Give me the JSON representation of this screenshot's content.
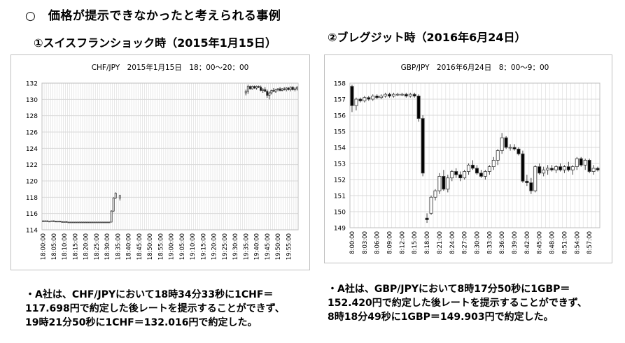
{
  "page": {
    "main_title": "○　価格が提示できなかったと考えられる事例",
    "sub_title_1": "①スイスフランショック時（2015年1月15日）",
    "sub_title_2": "②ブレグジット時（2016年6月24日）",
    "note_1": [
      "・A社は、CHF/JPYにおいて18時34分33秒に1CHF＝",
      "117.698円で約定した後レートを提示することができず、",
      "19時21分50秒に1CHF＝132.016円で約定した。"
    ],
    "note_2": [
      "・A社は、GBP/JPYにおいて8時17分50秒に1GBP＝",
      "152.420円で約定した後レートを提示することができず、",
      "8時18分49秒に1GBP＝149.903円で約定した。"
    ]
  },
  "colors": {
    "up_fill": "#ffffff",
    "down_fill": "#000000",
    "outline": "#404040",
    "grid": "#d9d9d9",
    "frame": "#bfbfbf"
  },
  "chart_data": [
    {
      "type": "candlestick",
      "title": "CHF/JPY　2015年1月15日　18：00～20：00",
      "ylim": [
        114,
        132
      ],
      "y_ticks": [
        114,
        116,
        118,
        120,
        122,
        124,
        126,
        128,
        130,
        132
      ],
      "x_tick_labels": [
        "18:00:00",
        "18:05:00",
        "18:10:00",
        "18:15:00",
        "18:20:00",
        "18:25:00",
        "18:30:00",
        "18:35:00",
        "18:40:00",
        "18:45:00",
        "18:50:00",
        "18:55:00",
        "19:00:00",
        "19:05:00",
        "19:10:00",
        "19:15:00",
        "19:20:00",
        "19:25:00",
        "19:30:00",
        "19:35:00",
        "19:40:00",
        "19:45:00",
        "19:50:00",
        "19:55:00"
      ],
      "start_minute": 0,
      "interval_minutes": 1,
      "n_slots": 120,
      "candles": [
        [
          0,
          115.1,
          115.15,
          115.0,
          115.05
        ],
        [
          1,
          115.05,
          115.15,
          115.0,
          115.1
        ],
        [
          2,
          115.1,
          115.15,
          115.0,
          115.05
        ],
        [
          3,
          115.05,
          115.1,
          115.0,
          115.05
        ],
        [
          4,
          115.05,
          115.1,
          115.0,
          115.1
        ],
        [
          5,
          115.1,
          115.15,
          115.0,
          115.05
        ],
        [
          6,
          115.05,
          115.1,
          114.95,
          115.0
        ],
        [
          7,
          115.0,
          115.1,
          114.95,
          115.05
        ],
        [
          8,
          115.05,
          115.1,
          114.95,
          115.0
        ],
        [
          9,
          115.0,
          115.05,
          114.9,
          114.95
        ],
        [
          10,
          114.95,
          115.05,
          114.9,
          115.0
        ],
        [
          11,
          115.0,
          115.05,
          114.9,
          114.95
        ],
        [
          12,
          114.95,
          115.0,
          114.9,
          114.95
        ],
        [
          13,
          114.95,
          115.0,
          114.9,
          114.95
        ],
        [
          14,
          114.95,
          115.0,
          114.9,
          114.95
        ],
        [
          15,
          114.95,
          115.0,
          114.9,
          114.95
        ],
        [
          16,
          114.95,
          115.0,
          114.9,
          114.95
        ],
        [
          17,
          114.95,
          115.0,
          114.9,
          114.95
        ],
        [
          18,
          114.95,
          115.0,
          114.9,
          114.95
        ],
        [
          19,
          114.95,
          115.0,
          114.9,
          114.95
        ],
        [
          20,
          114.95,
          115.0,
          114.9,
          114.95
        ],
        [
          21,
          114.95,
          115.0,
          114.9,
          114.95
        ],
        [
          22,
          114.95,
          115.0,
          114.9,
          114.95
        ],
        [
          23,
          114.95,
          115.0,
          114.9,
          114.95
        ],
        [
          24,
          114.95,
          115.0,
          114.9,
          114.95
        ],
        [
          25,
          114.95,
          115.0,
          114.9,
          114.95
        ],
        [
          26,
          114.95,
          115.0,
          114.9,
          114.95
        ],
        [
          27,
          114.95,
          115.0,
          114.9,
          114.95
        ],
        [
          28,
          114.95,
          115.0,
          114.9,
          114.95
        ],
        [
          29,
          114.95,
          115.0,
          114.9,
          114.95
        ],
        [
          30,
          114.95,
          115.0,
          114.9,
          114.95
        ],
        [
          31,
          114.95,
          115.0,
          114.9,
          114.95
        ],
        [
          32,
          114.95,
          116.4,
          114.9,
          116.3
        ],
        [
          33,
          116.3,
          118.0,
          116.2,
          117.9
        ],
        [
          34,
          117.9,
          118.6,
          117.8,
          118.5
        ],
        [
          36,
          117.9,
          118.3,
          117.6,
          118.2
        ],
        [
          95,
          130.8,
          131.2,
          130.5,
          131.0
        ],
        [
          96,
          131.0,
          131.8,
          130.7,
          131.6
        ],
        [
          97,
          131.6,
          131.7,
          131.2,
          131.3
        ],
        [
          98,
          131.3,
          131.7,
          131.2,
          131.6
        ],
        [
          99,
          131.6,
          131.7,
          131.3,
          131.4
        ],
        [
          100,
          131.4,
          131.7,
          131.2,
          131.6
        ],
        [
          101,
          131.6,
          131.7,
          131.4,
          131.5
        ],
        [
          102,
          131.5,
          131.7,
          131.0,
          131.1
        ],
        [
          103,
          131.1,
          131.4,
          130.8,
          131.2
        ],
        [
          104,
          131.2,
          131.5,
          130.9,
          131.0
        ],
        [
          105,
          131.0,
          131.2,
          130.2,
          130.5
        ],
        [
          106,
          130.5,
          131.0,
          130.0,
          130.8
        ],
        [
          107,
          130.8,
          131.2,
          130.6,
          131.1
        ],
        [
          108,
          131.1,
          131.4,
          130.9,
          131.0
        ],
        [
          109,
          131.0,
          131.3,
          130.8,
          131.2
        ],
        [
          110,
          131.2,
          131.4,
          131.0,
          131.3
        ],
        [
          111,
          131.3,
          131.5,
          131.0,
          131.1
        ],
        [
          112,
          131.1,
          131.4,
          131.0,
          131.3
        ],
        [
          113,
          131.3,
          131.5,
          131.1,
          131.2
        ],
        [
          114,
          131.2,
          131.5,
          131.0,
          131.4
        ],
        [
          115,
          131.4,
          131.5,
          131.1,
          131.2
        ],
        [
          116,
          131.2,
          131.6,
          131.0,
          131.5
        ],
        [
          117,
          131.5,
          131.6,
          131.1,
          131.2
        ],
        [
          118,
          131.2,
          131.5,
          131.0,
          131.3
        ],
        [
          119,
          131.3,
          131.6,
          131.1,
          131.5
        ]
      ]
    },
    {
      "type": "candlestick",
      "title": "GBP/JPY　2016年6月24日　8：00～9：00",
      "ylim": [
        149,
        158
      ],
      "y_ticks": [
        149,
        150,
        151,
        152,
        153,
        154,
        155,
        156,
        157,
        158
      ],
      "x_tick_labels": [
        "8:00:00",
        "8:03:00",
        "8:06:00",
        "8:09:00",
        "8:12:00",
        "8:15:00",
        "8:18:00",
        "8:21:00",
        "8:24:00",
        "8:27:00",
        "8:30:00",
        "8:33:00",
        "8:36:00",
        "8:39:00",
        "8:42:00",
        "8:45:00",
        "8:48:00",
        "8:51:00",
        "8:54:00",
        "8:57:00"
      ],
      "start_minute": 0,
      "interval_minutes": 1,
      "n_slots": 60,
      "candles": [
        [
          0,
          157.8,
          157.9,
          156.2,
          156.6
        ],
        [
          1,
          156.6,
          157.1,
          156.3,
          157.0
        ],
        [
          2,
          157.0,
          157.1,
          156.8,
          156.9
        ],
        [
          3,
          156.9,
          157.2,
          156.8,
          157.1
        ],
        [
          4,
          157.1,
          157.2,
          156.9,
          157.0
        ],
        [
          5,
          157.0,
          157.3,
          156.9,
          157.2
        ],
        [
          6,
          157.2,
          157.3,
          157.0,
          157.1
        ],
        [
          7,
          157.1,
          157.3,
          157.0,
          157.2
        ],
        [
          8,
          157.2,
          157.4,
          157.1,
          157.3
        ],
        [
          9,
          157.3,
          157.4,
          157.1,
          157.2
        ],
        [
          10,
          157.2,
          157.4,
          157.1,
          157.3
        ],
        [
          11,
          157.3,
          157.4,
          157.2,
          157.3
        ],
        [
          12,
          157.3,
          157.4,
          157.2,
          157.3
        ],
        [
          13,
          157.3,
          157.4,
          157.1,
          157.2
        ],
        [
          14,
          157.2,
          157.4,
          157.1,
          157.3
        ],
        [
          15,
          157.3,
          157.4,
          157.1,
          157.2
        ],
        [
          16,
          157.2,
          157.3,
          155.6,
          155.8
        ],
        [
          17,
          155.8,
          156.0,
          152.2,
          152.4
        ],
        [
          18,
          149.6,
          149.9,
          149.3,
          149.5
        ],
        [
          19,
          149.9,
          151.0,
          149.8,
          150.9
        ],
        [
          20,
          150.9,
          151.4,
          150.7,
          151.3
        ],
        [
          21,
          151.3,
          152.4,
          151.1,
          152.2
        ],
        [
          22,
          152.2,
          152.6,
          151.3,
          151.4
        ],
        [
          23,
          151.4,
          152.3,
          151.2,
          152.1
        ],
        [
          24,
          152.1,
          152.6,
          151.9,
          152.5
        ],
        [
          25,
          152.5,
          152.7,
          152.1,
          152.3
        ],
        [
          26,
          152.3,
          152.5,
          151.9,
          152.1
        ],
        [
          27,
          152.1,
          152.6,
          152.0,
          152.5
        ],
        [
          28,
          152.5,
          153.0,
          152.3,
          152.9
        ],
        [
          29,
          152.9,
          153.2,
          152.6,
          152.7
        ],
        [
          30,
          152.7,
          152.9,
          152.3,
          152.4
        ],
        [
          31,
          152.4,
          152.6,
          152.1,
          152.2
        ],
        [
          32,
          152.2,
          152.6,
          152.0,
          152.5
        ],
        [
          33,
          152.5,
          152.9,
          152.3,
          152.8
        ],
        [
          34,
          152.8,
          153.4,
          152.6,
          153.2
        ],
        [
          35,
          153.2,
          153.9,
          152.9,
          153.8
        ],
        [
          36,
          153.8,
          154.9,
          153.6,
          154.6
        ],
        [
          37,
          154.6,
          154.7,
          153.9,
          154.0
        ],
        [
          38,
          154.0,
          154.2,
          153.8,
          154.0
        ],
        [
          39,
          154.0,
          154.2,
          153.8,
          153.9
        ],
        [
          40,
          153.9,
          154.0,
          153.5,
          153.6
        ],
        [
          41,
          153.6,
          153.8,
          151.8,
          151.9
        ],
        [
          42,
          151.9,
          152.3,
          151.6,
          151.8
        ],
        [
          43,
          151.8,
          152.1,
          151.1,
          151.3
        ],
        [
          44,
          151.3,
          152.9,
          151.2,
          152.8
        ],
        [
          45,
          152.8,
          153.0,
          152.3,
          152.4
        ],
        [
          46,
          152.4,
          152.8,
          152.2,
          152.6
        ],
        [
          47,
          152.6,
          152.9,
          152.3,
          152.7
        ],
        [
          48,
          152.7,
          152.9,
          152.5,
          152.6
        ],
        [
          49,
          152.6,
          152.9,
          152.4,
          152.8
        ],
        [
          50,
          152.8,
          153.0,
          152.5,
          152.6
        ],
        [
          51,
          152.6,
          152.9,
          152.4,
          152.8
        ],
        [
          52,
          152.8,
          153.1,
          152.5,
          152.6
        ],
        [
          53,
          152.6,
          152.9,
          152.3,
          152.8
        ],
        [
          54,
          152.8,
          153.4,
          152.6,
          153.3
        ],
        [
          55,
          153.3,
          153.4,
          152.8,
          152.9
        ],
        [
          56,
          152.9,
          153.3,
          152.6,
          153.2
        ],
        [
          57,
          153.2,
          153.3,
          152.4,
          152.5
        ],
        [
          58,
          152.5,
          152.9,
          152.3,
          152.7
        ],
        [
          59,
          152.7,
          152.8,
          152.5,
          152.6
        ]
      ]
    }
  ]
}
